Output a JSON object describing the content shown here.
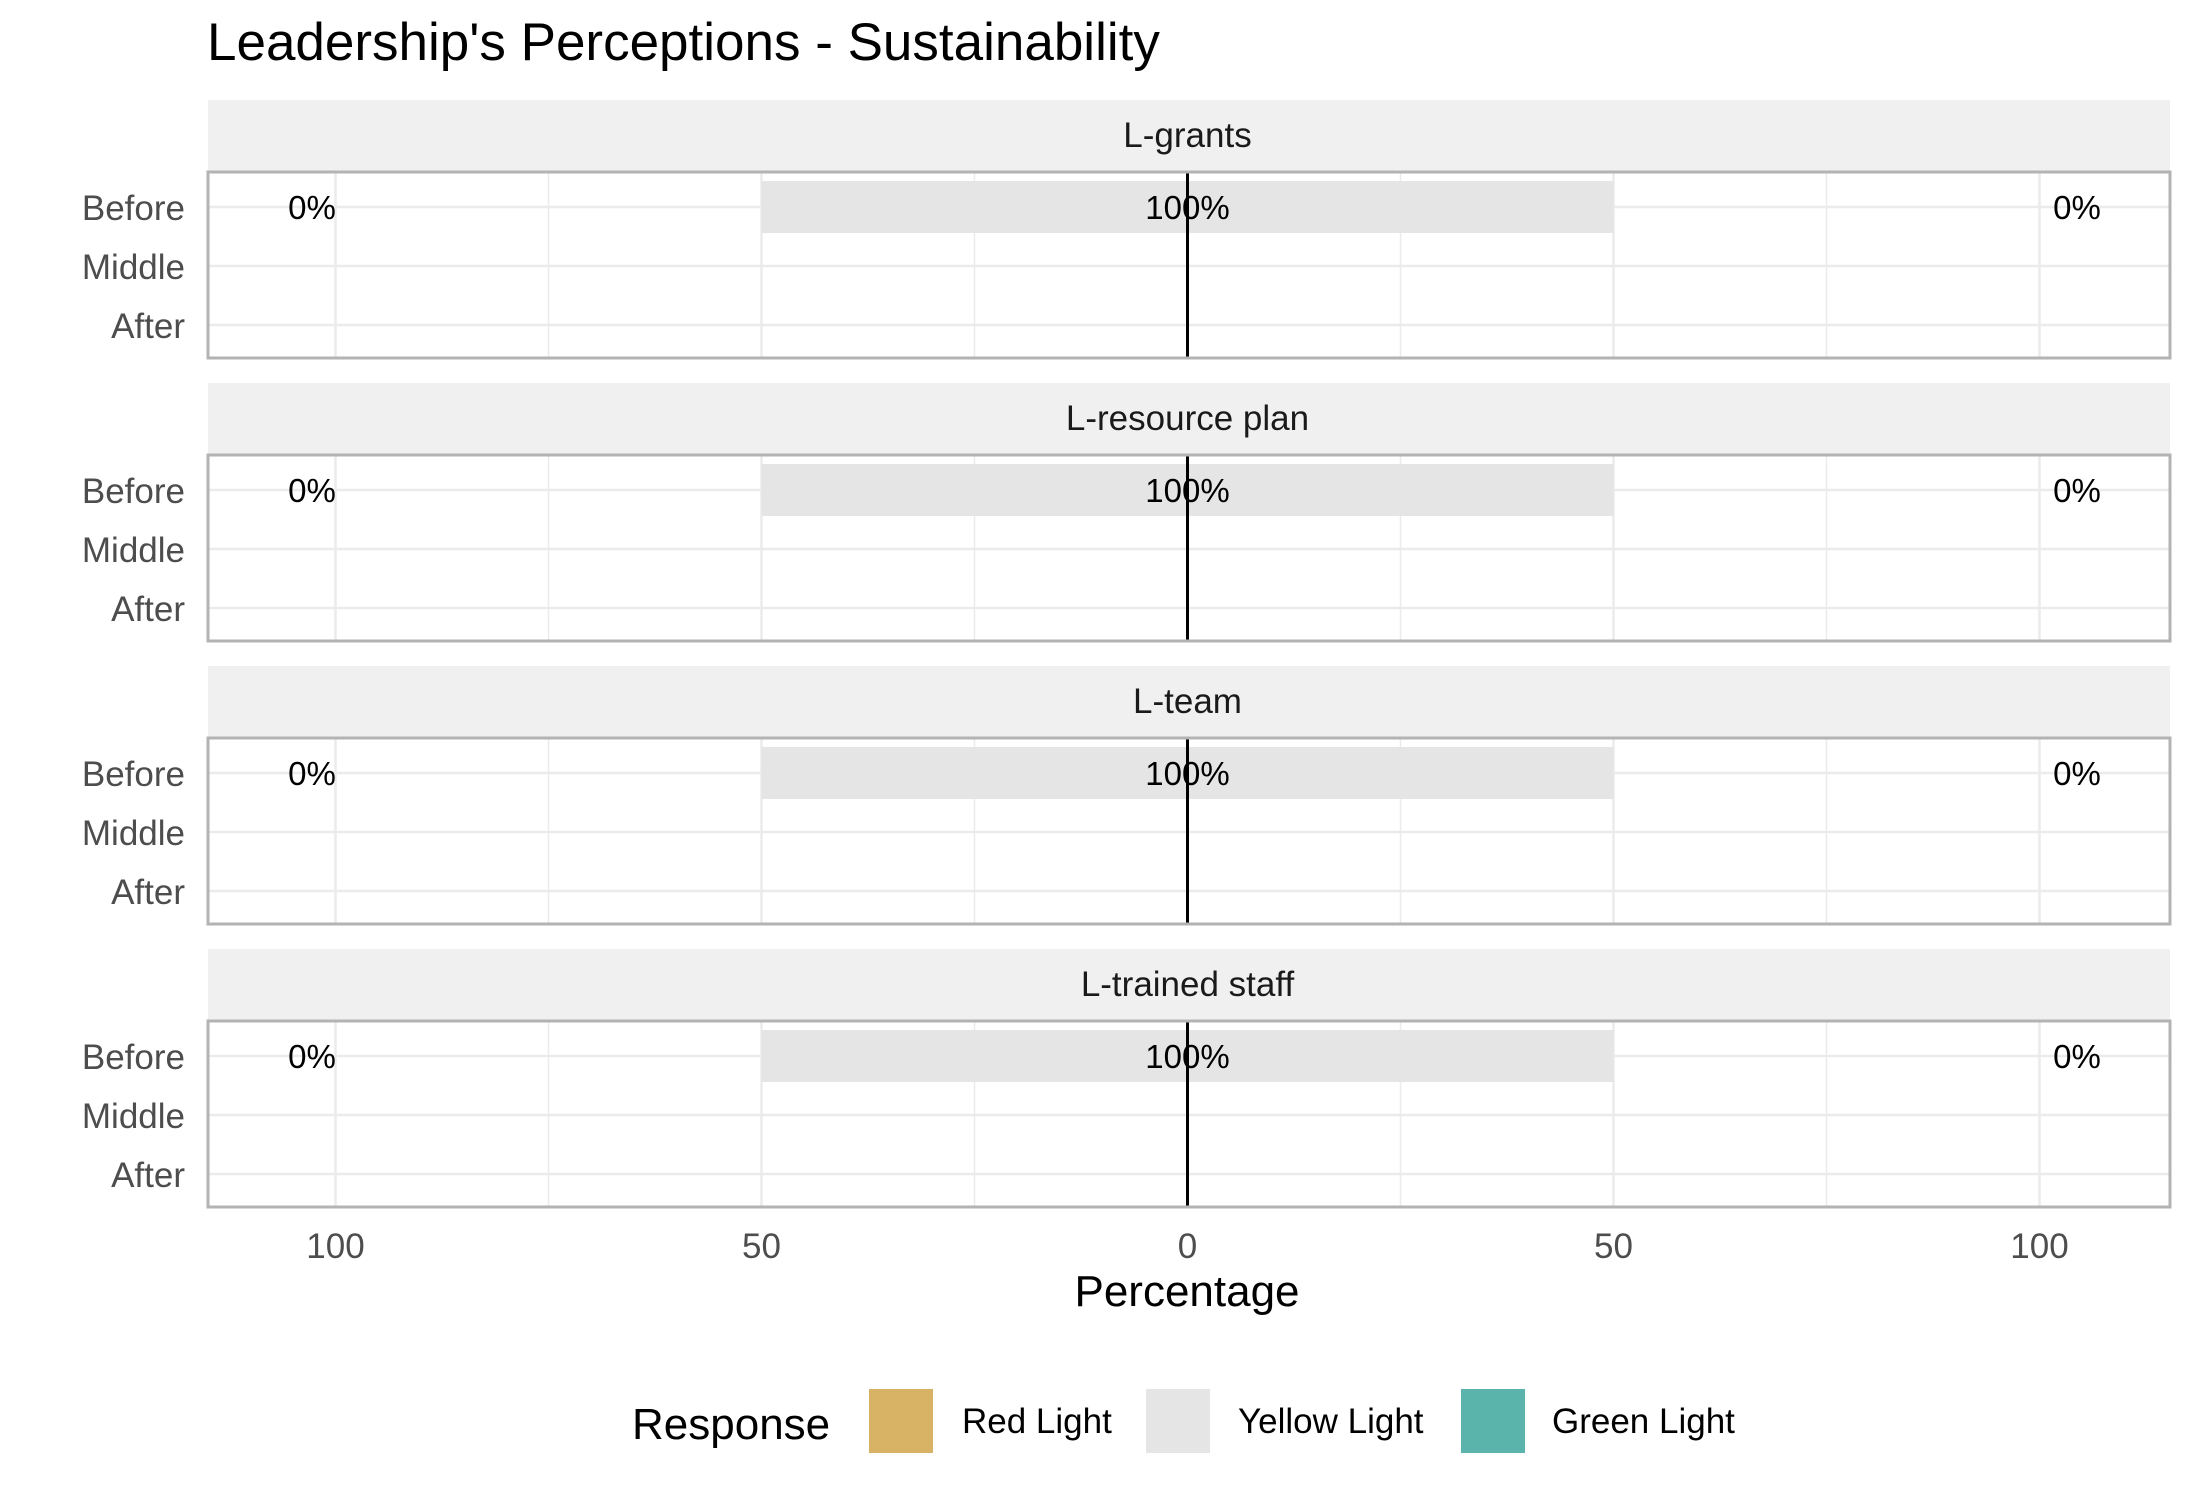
{
  "chart_data": {
    "type": "bar",
    "orientation": "horizontal-diverging",
    "title": "Leadership's Perceptions - Sustainability",
    "xlabel": "Percentage",
    "ylabel": "",
    "xlim": [
      -115,
      115
    ],
    "x_ticks": [
      -100,
      -50,
      0,
      50,
      100
    ],
    "x_tick_labels": [
      "100",
      "50",
      "0",
      "50",
      "100"
    ],
    "grid": true,
    "categories": [
      "Before",
      "Middle",
      "After"
    ],
    "facets": [
      {
        "name": "L-grants",
        "rows": [
          {
            "category": "Before",
            "red": 0,
            "yellow": 100,
            "green": 0,
            "left_label": "0%",
            "center_label": "100%",
            "right_label": "0%"
          }
        ]
      },
      {
        "name": "L-resource plan",
        "rows": [
          {
            "category": "Before",
            "red": 0,
            "yellow": 100,
            "green": 0,
            "left_label": "0%",
            "center_label": "100%",
            "right_label": "0%"
          }
        ]
      },
      {
        "name": "L-team",
        "rows": [
          {
            "category": "Before",
            "red": 0,
            "yellow": 100,
            "green": 0,
            "left_label": "0%",
            "center_label": "100%",
            "right_label": "0%"
          }
        ]
      },
      {
        "name": "L-trained staff",
        "rows": [
          {
            "category": "Before",
            "red": 0,
            "yellow": 100,
            "green": 0,
            "left_label": "0%",
            "center_label": "100%",
            "right_label": "0%"
          }
        ]
      }
    ],
    "legend": {
      "title": "Response",
      "position": "bottom",
      "items": [
        {
          "label": "Red Light",
          "color": "#D8B365"
        },
        {
          "label": "Yellow Light",
          "color": "#E5E5E5"
        },
        {
          "label": "Green Light",
          "color": "#5AB4AC"
        }
      ]
    },
    "colors": {
      "strip": "#F0F0F0",
      "panel_border": "#B3B3B3",
      "grid": "#EBEBEB",
      "zero_line": "#000000"
    }
  }
}
